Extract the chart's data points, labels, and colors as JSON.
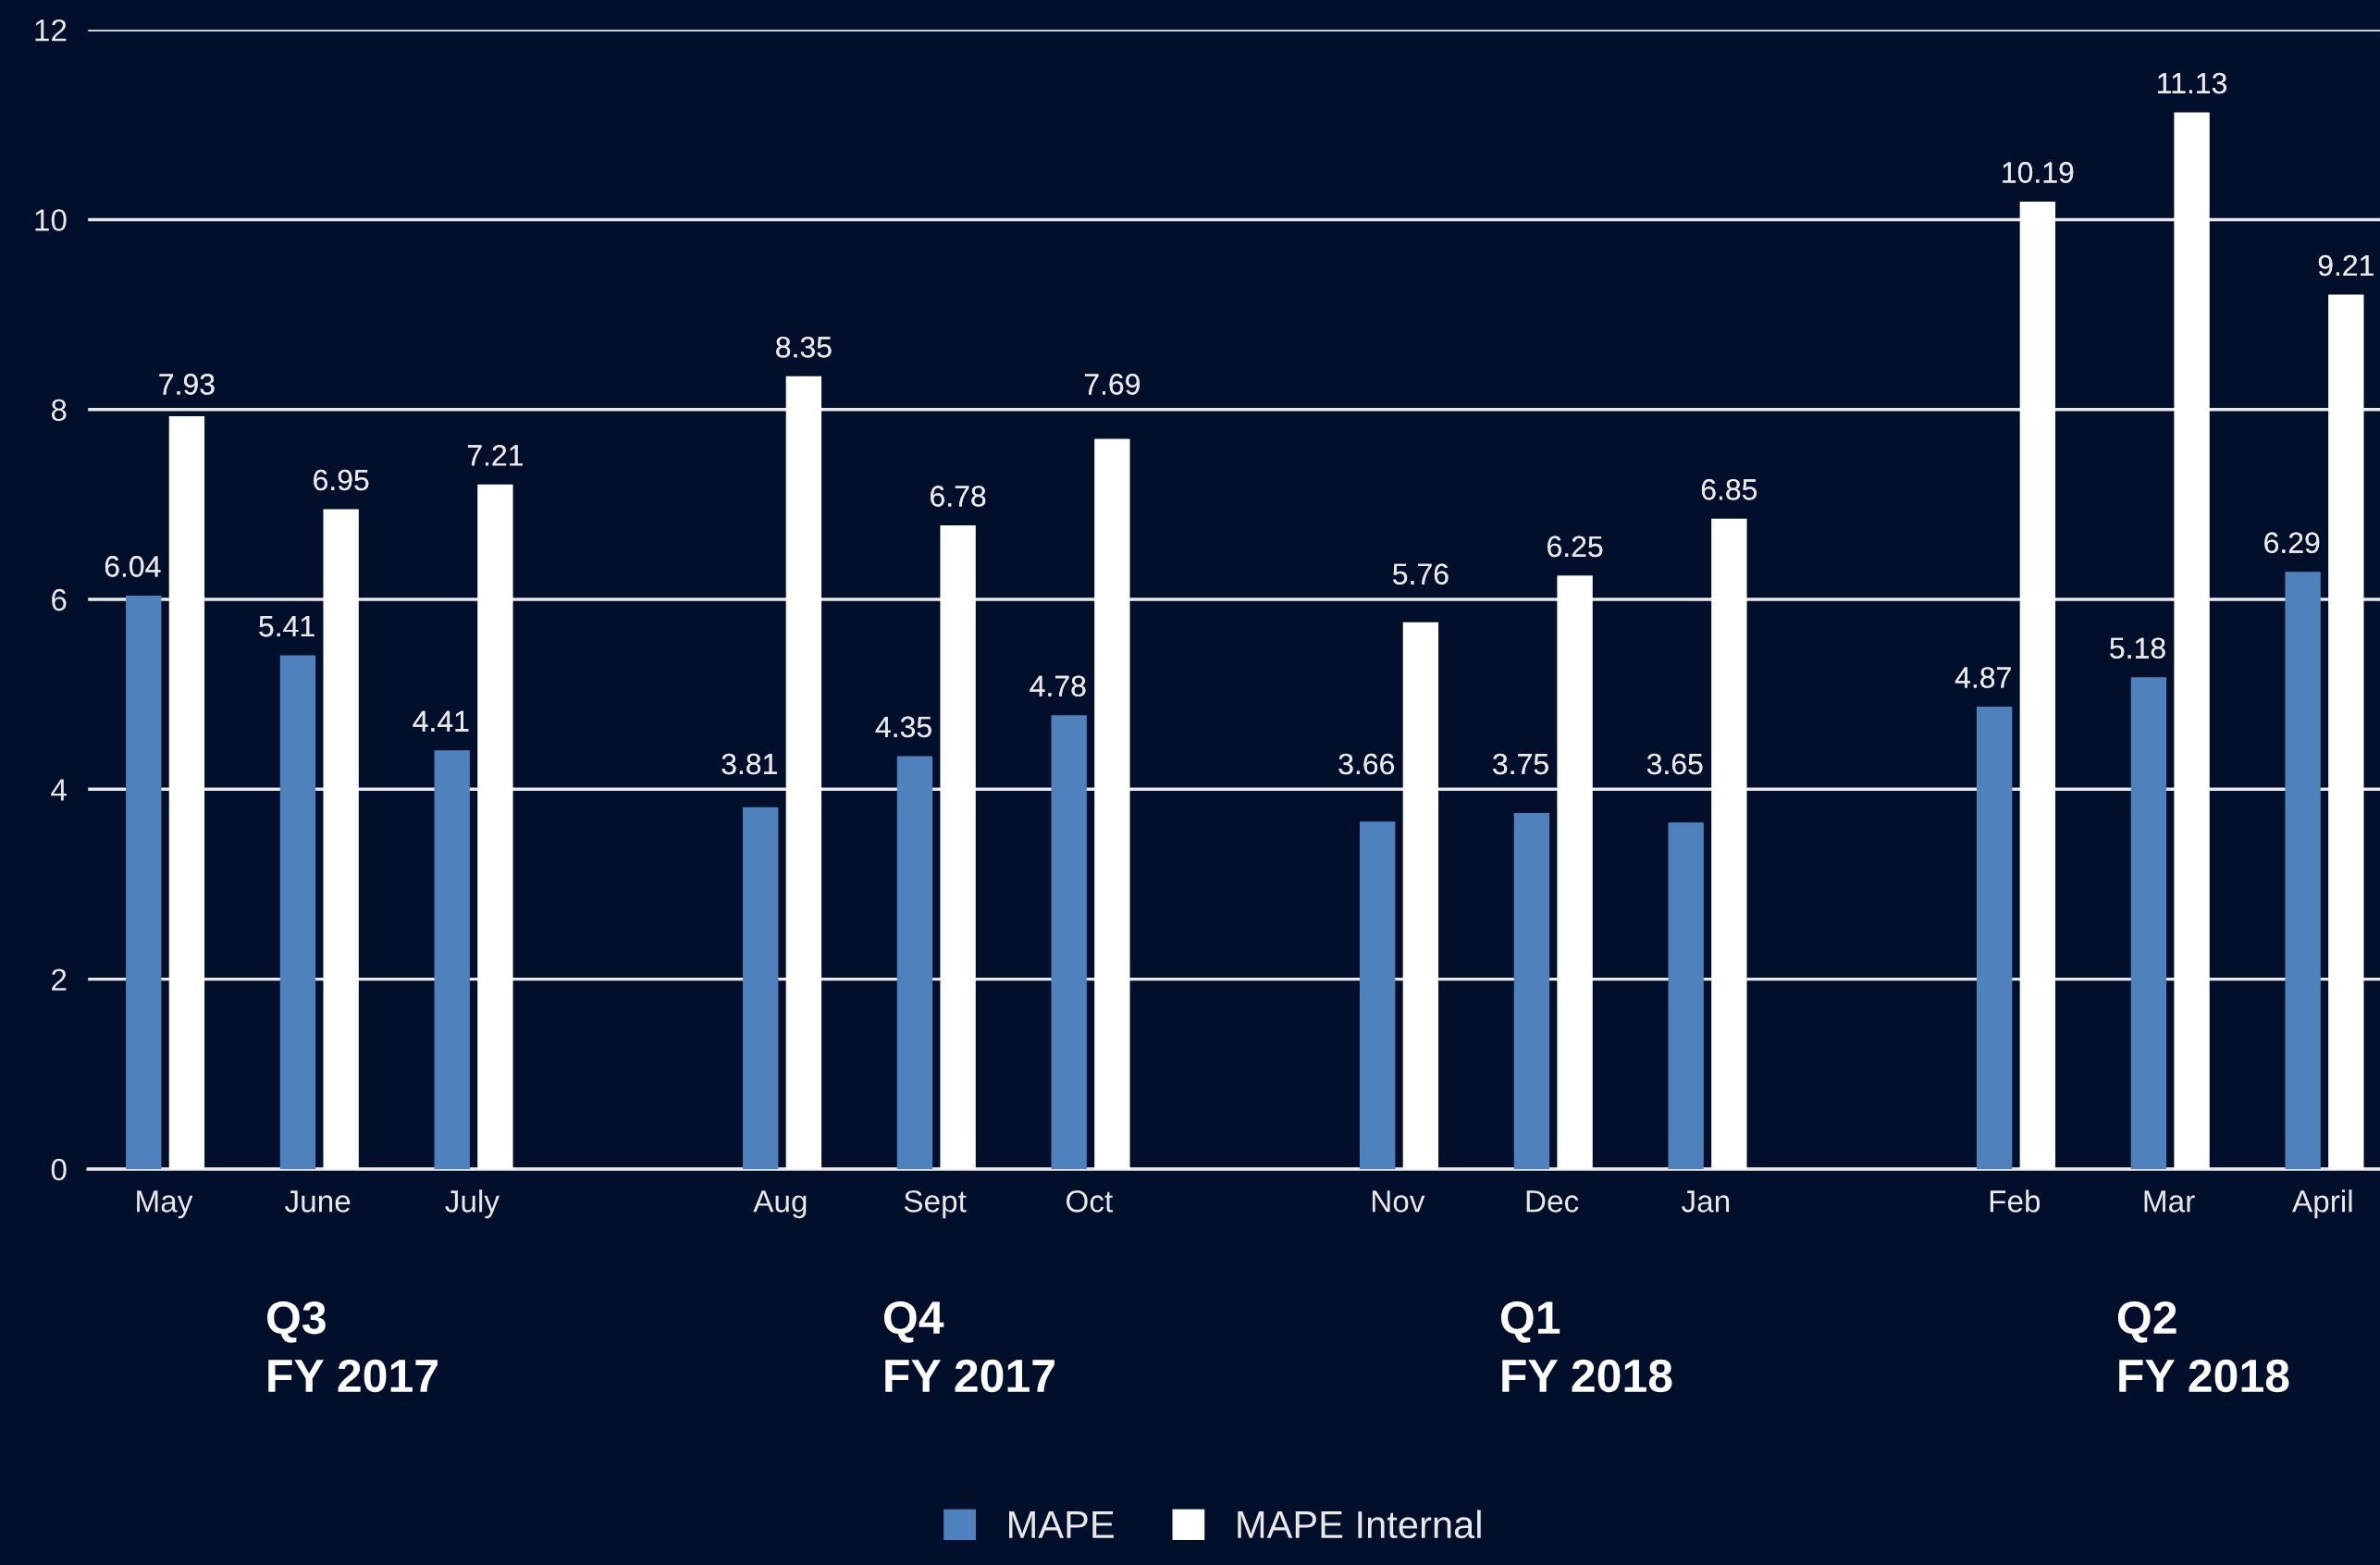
{
  "chart_data": {
    "type": "bar",
    "categories": [
      "May",
      "June",
      "July",
      null,
      "Aug",
      "Sept",
      "Oct",
      null,
      "Nov",
      "Dec",
      "Jan",
      null,
      "Feb",
      "Mar",
      "April"
    ],
    "series": [
      {
        "name": "MAPE",
        "color": "#4f81bd",
        "values": [
          6.04,
          5.41,
          4.41,
          null,
          3.81,
          4.35,
          4.78,
          null,
          3.66,
          3.75,
          3.65,
          null,
          4.87,
          5.18,
          6.29
        ]
      },
      {
        "name": "MAPE Internal",
        "color": "#ffffff",
        "values": [
          7.93,
          6.95,
          7.21,
          null,
          8.35,
          6.78,
          7.69,
          null,
          5.76,
          6.25,
          6.85,
          null,
          10.19,
          11.13,
          9.21
        ]
      }
    ],
    "ylim": [
      0,
      12
    ],
    "yticks": [
      0,
      2,
      4,
      6,
      8,
      10,
      12
    ],
    "grid": "y",
    "data_labels": true,
    "legend": "bottom",
    "annotations": [
      "Q3\nFY 2017",
      "Q4\nFY 2017",
      "Q1\nFY 2018",
      "Q2\nFY 2018"
    ]
  }
}
